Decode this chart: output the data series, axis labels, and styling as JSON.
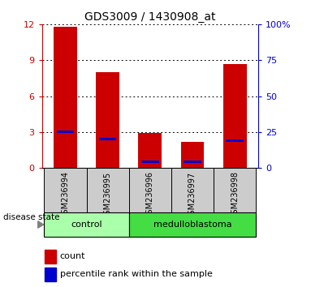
{
  "title": "GDS3009 / 1430908_at",
  "samples": [
    "GSM236994",
    "GSM236995",
    "GSM236996",
    "GSM236997",
    "GSM236998"
  ],
  "count_values": [
    11.8,
    8.0,
    2.9,
    2.2,
    8.7
  ],
  "percentile_values": [
    3.0,
    2.4,
    0.5,
    0.5,
    2.3
  ],
  "ylim_left": [
    0,
    12
  ],
  "ylim_right": [
    0,
    100
  ],
  "yticks_left": [
    0,
    3,
    6,
    9,
    12
  ],
  "ytick_labels_left": [
    "0",
    "3",
    "6",
    "9",
    "12"
  ],
  "yticks_right": [
    0,
    25,
    50,
    75,
    100
  ],
  "ytick_labels_right": [
    "0",
    "25",
    "50",
    "75",
    "100%"
  ],
  "bar_color": "#cc0000",
  "percentile_color": "#0000cc",
  "bar_width": 0.55,
  "control_color": "#aaffaa",
  "medulloblastoma_color": "#44dd44",
  "tick_bg_color": "#cccccc",
  "legend_count_label": "count",
  "legend_percentile_label": "percentile rank within the sample",
  "disease_state_label": "disease state"
}
